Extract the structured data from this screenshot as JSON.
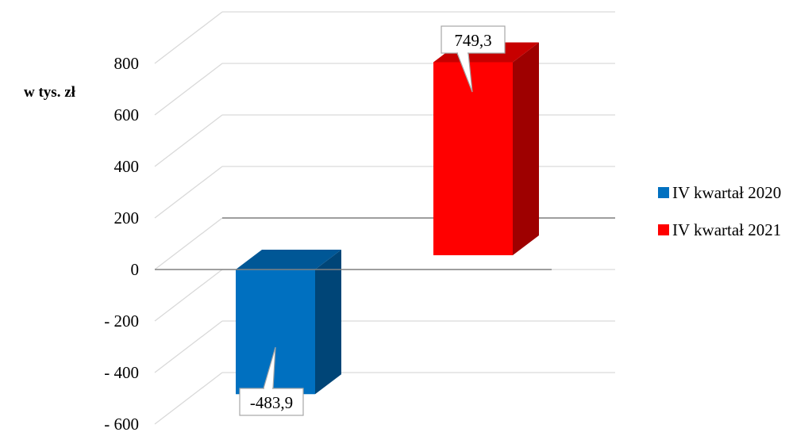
{
  "chart_data": {
    "type": "bar",
    "ylabel": "w tys. zł",
    "ylim": [
      -600,
      800
    ],
    "yticks": [
      800,
      600,
      400,
      200,
      0,
      -200,
      -400,
      -600
    ],
    "ytick_labels": [
      "800",
      "600",
      "400",
      "200",
      "0",
      "- 200",
      "- 400",
      "- 600"
    ],
    "series": [
      {
        "name": "IV kwartał 2020",
        "value": -483.9,
        "label": "-483,9",
        "color": "#0070C0"
      },
      {
        "name": "IV kwartał 2021",
        "value": 749.3,
        "label": "749,3",
        "color": "#FF0000"
      }
    ],
    "grid": true,
    "legend_position": "right",
    "style": "3d-column"
  }
}
